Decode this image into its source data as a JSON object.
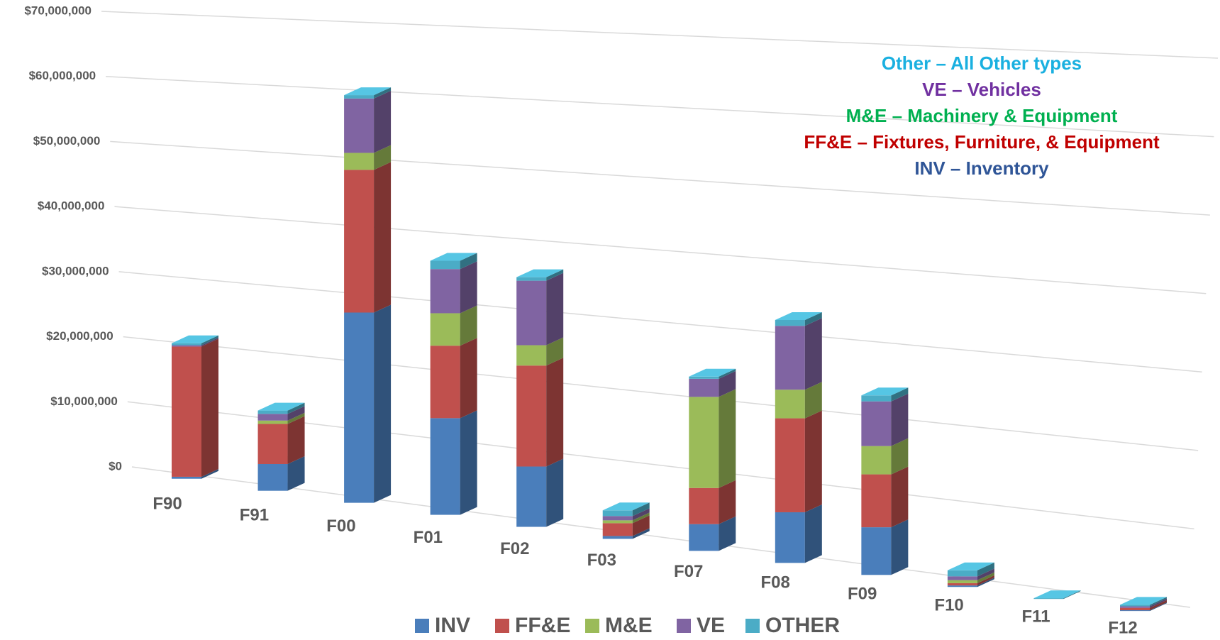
{
  "chart_data": {
    "type": "bar3d_stacked",
    "categories": [
      "F90",
      "F91",
      "F00",
      "F01",
      "F02",
      "F03",
      "F07",
      "F08",
      "F09",
      "F10",
      "F11",
      "F12"
    ],
    "series": [
      {
        "name": "INV",
        "color": "#4a7ebb",
        "values": [
          300000,
          4000000,
          28000000,
          14000000,
          8600000,
          400000,
          3700000,
          6900000,
          6400000,
          200000,
          0,
          100000
        ]
      },
      {
        "name": "FF&E",
        "color": "#c0504d",
        "values": [
          19800000,
          6000000,
          21000000,
          10500000,
          14400000,
          1800000,
          5000000,
          12800000,
          7100000,
          300000,
          0,
          300000
        ]
      },
      {
        "name": "M&E",
        "color": "#9bbb59",
        "values": [
          0,
          500000,
          2500000,
          4700000,
          2900000,
          400000,
          12600000,
          3900000,
          3800000,
          400000,
          0,
          0
        ]
      },
      {
        "name": "VE",
        "color": "#8064a2",
        "values": [
          200000,
          1000000,
          8000000,
          6400000,
          9200000,
          600000,
          2500000,
          8700000,
          6000000,
          500000,
          0,
          200000
        ]
      },
      {
        "name": "OTHER",
        "color": "#4bacc6",
        "values": [
          300000,
          500000,
          500000,
          1200000,
          500000,
          800000,
          300000,
          800000,
          800000,
          800000,
          100000,
          200000
        ]
      }
    ],
    "ylim": [
      0,
      70000000
    ],
    "yticks": [
      {
        "value": 0,
        "label": "$0"
      },
      {
        "value": 10000000,
        "label": "$10,000,000"
      },
      {
        "value": 20000000,
        "label": "$20,000,000"
      },
      {
        "value": 30000000,
        "label": "$30,000,000"
      },
      {
        "value": 40000000,
        "label": "$40,000,000"
      },
      {
        "value": 50000000,
        "label": "$50,000,000"
      },
      {
        "value": 60000000,
        "label": "$60,000,000"
      },
      {
        "value": 70000000,
        "label": "$70,000,000"
      }
    ],
    "grid": true,
    "legend": "bottom",
    "annotations": [
      {
        "text": "Other – All Other types",
        "color": "#1ab0e0"
      },
      {
        "text": "VE – Vehicles",
        "color": "#7030a0"
      },
      {
        "text": "M&E – Machinery & Equipment",
        "color": "#00b050"
      },
      {
        "text": "FF&E – Fixtures, Furniture, & Equipment",
        "color": "#c00000"
      },
      {
        "text": "INV – Inventory",
        "color": "#2f5597"
      }
    ]
  }
}
